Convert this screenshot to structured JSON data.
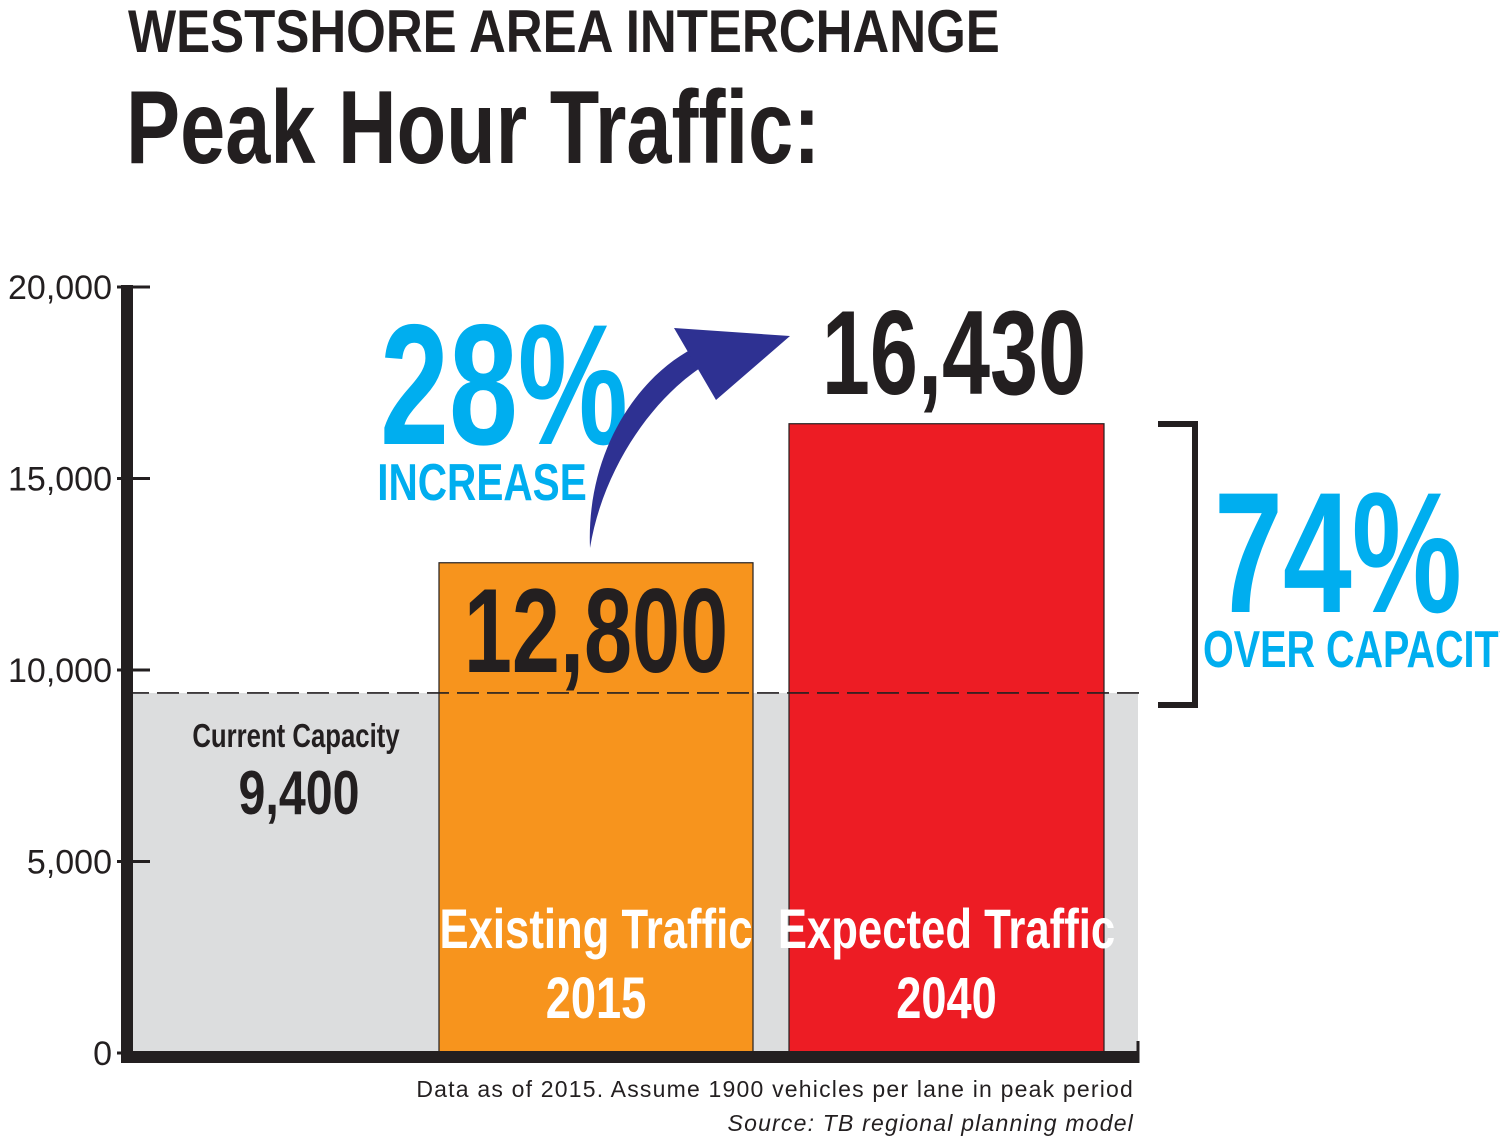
{
  "header": {
    "title": "WESTSHORE AREA INTERCHANGE",
    "subtitle": "Peak Hour Traffic:"
  },
  "chart_data": {
    "type": "bar",
    "ylim": [
      0,
      20000
    ],
    "yticks": [
      0,
      5000,
      10000,
      15000,
      20000
    ],
    "ytick_labels": [
      "0",
      "5,000",
      "10,000",
      "15,000",
      "20,000"
    ],
    "bars": [
      {
        "label_line1": "Existing Traffic",
        "label_line2": "2015",
        "value": 12800,
        "value_label": "12,800",
        "color": "#f7941d"
      },
      {
        "label_line1": "Expected Traffic",
        "label_line2": "2040",
        "value": 16430,
        "value_label": "16,430",
        "color": "#ed1c24"
      }
    ],
    "capacity": {
      "label": "Current Capacity",
      "value": 9400,
      "value_label": "9,400",
      "color": "#dcddde"
    },
    "annotations": {
      "increase_pct": "28%",
      "increase_label": "INCREASE",
      "over_pct": "74%",
      "over_label": "OVER CAPACITY"
    },
    "grid": false
  },
  "colors": {
    "accent_cyan": "#00aeef",
    "arrow_blue": "#2e3192",
    "text_dark": "#231f20"
  },
  "footnote": {
    "line1": "Data as of 2015. Assume 1900 vehicles per lane in peak period",
    "line2": "Source: TB regional planning model"
  }
}
